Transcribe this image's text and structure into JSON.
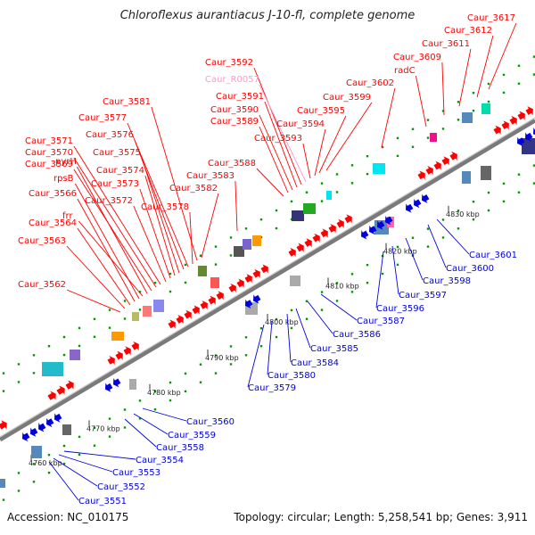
{
  "title": "Chloroflexus aurantiacus J-10-fl, complete genome",
  "footer": {
    "accession": "Accession: NC_010175",
    "summary": "Topology: circular; Length: 5,258,541 bp; Genes: 3,911"
  },
  "colors": {
    "forward": "#ff0000",
    "reverse": "#0000dd",
    "rna": "#ff99cc",
    "backbone": "#888888",
    "tick": "#009900"
  },
  "scale": {
    "labels": [
      "4760 kbp",
      "4770 kbp",
      "4780 kbp",
      "4790 kbp",
      "4800 kbp",
      "4810 kbp",
      "4820 kbp",
      "4830 kbp"
    ]
  },
  "forward_genes": [
    "Caur_3562",
    "Caur_3563",
    "Caur_3564",
    "Caur_3566",
    "rpsB",
    "frr",
    "pyrH",
    "Caur_3569",
    "Caur_3570",
    "Caur_3571",
    "Caur_3572",
    "Caur_3573",
    "Caur_3574",
    "Caur_3575",
    "Caur_3576",
    "Caur_3577",
    "Caur_3578",
    "Caur_3581",
    "Caur_3582",
    "Caur_3583",
    "Caur_3588",
    "Caur_3589",
    "Caur_3590",
    "Caur_3591",
    "Caur_3592",
    "Caur_R0057",
    "Caur_3593",
    "Caur_3594",
    "Caur_3595",
    "Caur_3599",
    "Caur_3602",
    "radC",
    "Caur_3609",
    "Caur_3611",
    "Caur_3612",
    "Caur_3617"
  ],
  "reverse_genes": [
    "Caur_3551",
    "Caur_3552",
    "Caur_3553",
    "Caur_3554",
    "Caur_3558",
    "Caur_3559",
    "Caur_3560",
    "Caur_3579",
    "Caur_3580",
    "Caur_3584",
    "Caur_3585",
    "Caur_3586",
    "Caur_3587",
    "Caur_3596",
    "Caur_3597",
    "Caur_3598",
    "Caur_3600",
    "Caur_3601"
  ]
}
